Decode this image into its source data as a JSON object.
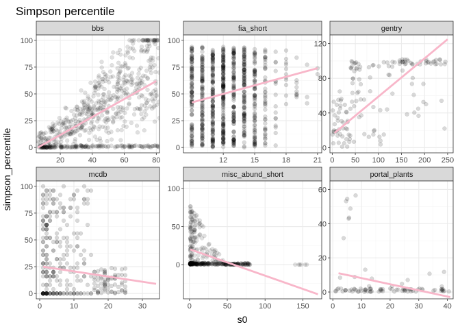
{
  "title": "Simpson percentile",
  "xlabel": "s0",
  "ylabel": "simpson_percentile",
  "colors": {
    "points": "#000000",
    "trend": "#f8b6c9",
    "strip_bg": "#d9d9d9",
    "panel_border": "#333333",
    "grid_major": "#ebebeb",
    "grid_minor": "#f5f5f5"
  },
  "chart_data": [
    {
      "type": "scatter",
      "panel": "bbs",
      "xlim": [
        5,
        82
      ],
      "ylim": [
        -5,
        105
      ],
      "xticks": [
        20,
        40,
        60,
        80
      ],
      "yticks": [
        0,
        25,
        50,
        75,
        100
      ],
      "point_alpha": 0.12,
      "point_count": 700,
      "point_seed": 11,
      "point_x_range": [
        6,
        82
      ],
      "trend": {
        "x": [
          6,
          80
        ],
        "y": [
          0,
          62
        ]
      },
      "grid": true
    },
    {
      "type": "scatter",
      "panel": "fia_short",
      "xlim": [
        8.2,
        21.4
      ],
      "ylim": [
        -5,
        105
      ],
      "xticks": [
        12,
        15,
        18,
        21
      ],
      "yticks": [
        0,
        25,
        50,
        75,
        100
      ],
      "point_alpha": 0.15,
      "point_count": 900,
      "point_seed": 23,
      "x_columns": [
        9,
        10,
        11,
        12,
        13,
        14,
        15,
        16,
        17,
        18,
        19,
        20,
        21
      ],
      "trend": {
        "x": [
          9,
          21
        ],
        "y": [
          42,
          74
        ]
      },
      "grid": true
    },
    {
      "type": "scatter",
      "panel": "gentry",
      "xlim": [
        -5,
        262
      ],
      "ylim": [
        -6,
        130
      ],
      "xticks": [
        0,
        50,
        100,
        150,
        200,
        250
      ],
      "yticks": [
        0,
        40,
        80,
        120
      ],
      "point_alpha": 0.15,
      "point_count": 150,
      "point_seed": 37,
      "trend": {
        "x": [
          5,
          250
        ],
        "y": [
          17,
          125
        ]
      },
      "grid": true
    },
    {
      "type": "scatter",
      "panel": "mcdb",
      "xlim": [
        -1,
        35
      ],
      "ylim": [
        -5,
        105
      ],
      "xticks": [
        0,
        10,
        20,
        30
      ],
      "yticks": [
        0,
        25,
        50,
        75,
        100
      ],
      "point_alpha": 0.15,
      "point_count": 330,
      "point_seed": 41,
      "trend": {
        "x": [
          1,
          34
        ],
        "y": [
          25,
          9
        ]
      },
      "grid": true
    },
    {
      "type": "scatter",
      "panel": "misc_abund_short",
      "xlim": [
        -8,
        175
      ],
      "ylim": [
        -45,
        110
      ],
      "xticks": [
        0,
        50,
        100,
        150
      ],
      "yticks": [
        0,
        50,
        100
      ],
      "point_alpha": 0.12,
      "point_count": 420,
      "point_seed": 53,
      "trend": {
        "x": [
          1,
          170
        ],
        "y": [
          20,
          -39
        ]
      },
      "grid": true
    },
    {
      "type": "scatter",
      "panel": "portal_plants",
      "xlim": [
        -1,
        42
      ],
      "ylim": [
        -4,
        65
      ],
      "xticks": [
        0,
        10,
        20,
        30,
        40
      ],
      "yticks": [
        0,
        20,
        40,
        60
      ],
      "point_alpha": 0.15,
      "point_count": 90,
      "point_seed": 67,
      "trend": {
        "x": [
          2,
          41
        ],
        "y": [
          11,
          -3
        ]
      },
      "grid": true
    }
  ]
}
